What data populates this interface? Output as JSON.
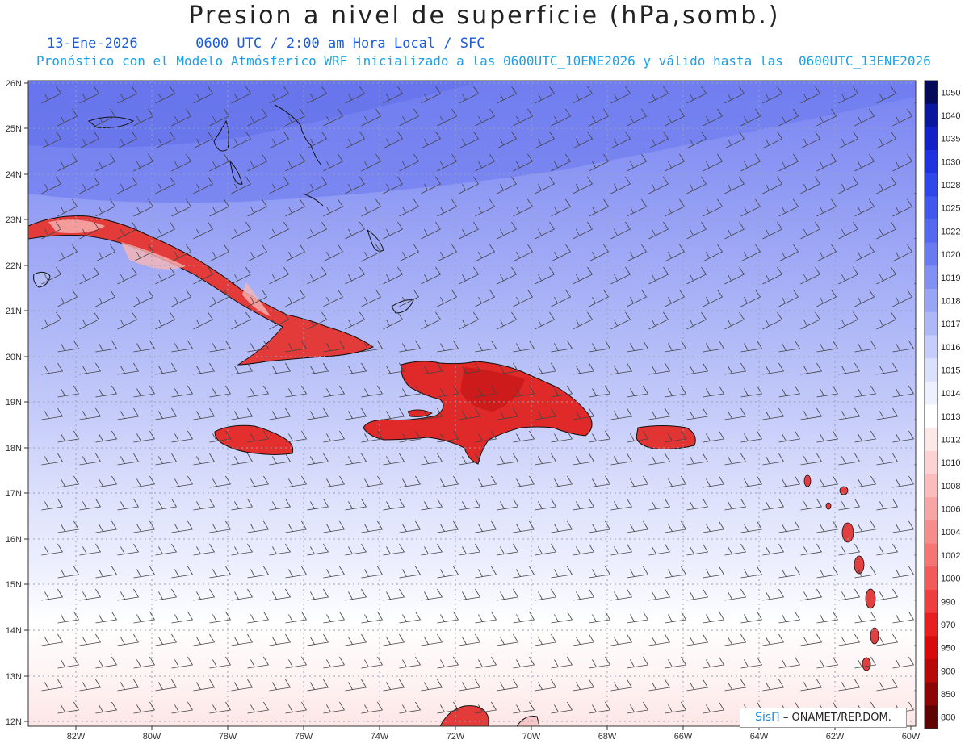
{
  "header": {
    "title": "Presion a nivel de superficie (hPa,somb.)",
    "date": "13-Ene-2026",
    "time_info": "0600 UTC / 2:00 am Hora Local / SFC",
    "forecast_info": "Pronóstico con el Modelo Atmósferico WRF inicializado a las 0600UTC_10ENE2026 y válido hasta las  0600UTC_13ENE2026"
  },
  "axes": {
    "lat_labels": [
      "26N",
      "25N",
      "24N",
      "23N",
      "22N",
      "21N",
      "20N",
      "19N",
      "18N",
      "17N",
      "16N",
      "15N",
      "14N",
      "13N",
      "12N"
    ],
    "lon_labels": [
      "82W",
      "80W",
      "78W",
      "76W",
      "74W",
      "72W",
      "70W",
      "68W",
      "66W",
      "64W",
      "62W",
      "60W"
    ]
  },
  "colorbar": {
    "labels": [
      "1050",
      "1040",
      "1035",
      "1030",
      "1028",
      "1025",
      "1022",
      "1020",
      "1019",
      "1018",
      "1017",
      "1016",
      "1015",
      "1014",
      "1013",
      "1012",
      "1010",
      "1008",
      "1006",
      "1004",
      "1002",
      "1000",
      "990",
      "970",
      "950",
      "900",
      "850",
      "800"
    ],
    "colors": [
      "#050a5c",
      "#0a18a0",
      "#1222c8",
      "#1f33e0",
      "#2e46ea",
      "#4058ee",
      "#5568f0",
      "#6a7bf2",
      "#8190f4",
      "#98a4f6",
      "#aeb8f8",
      "#c5cdfa",
      "#dbe0fc",
      "#eef0fe",
      "#ffffff",
      "#fde8e8",
      "#fcd2d2",
      "#fbbcbc",
      "#f9a4a4",
      "#f78c8c",
      "#f57474",
      "#f25b5b",
      "#ee3e3e",
      "#e81f1f",
      "#d80b0b",
      "#b80808",
      "#8e0505",
      "#620303"
    ]
  },
  "credit": {
    "brand": "SisΠ",
    "text": "– ONAMET/REP.DOM."
  }
}
